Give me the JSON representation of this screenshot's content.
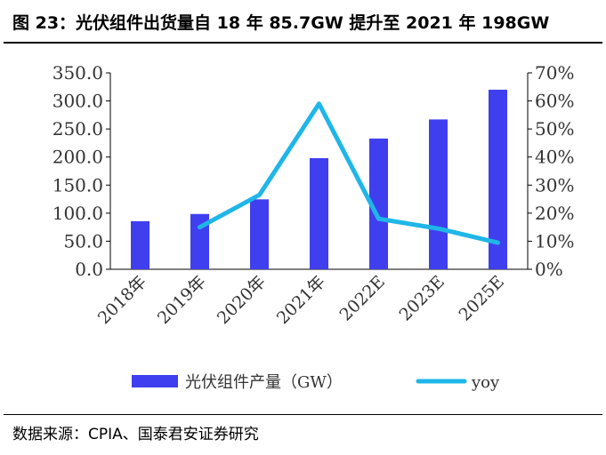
{
  "title": "图 23：光伏组件出货量自 18 年 85.7GW 提升至 2021 年 198GW",
  "source": "数据来源：CPIA、国泰君安证券研究",
  "colors": {
    "bar": "#3f3ff0",
    "line": "#1fb6e8",
    "axis": "#000000",
    "text": "#333333"
  },
  "chart_data": {
    "type": "bar",
    "categories": [
      "2018年",
      "2019年",
      "2020年",
      "2021年",
      "2022E",
      "2023E",
      "2025E"
    ],
    "series": [
      {
        "name": "光伏组件产量（GW）",
        "type": "bar",
        "axis": "left",
        "values": [
          85.7,
          98.5,
          124.6,
          198.0,
          233.0,
          267.0,
          320.0
        ]
      },
      {
        "name": "yoy",
        "type": "line",
        "axis": "right",
        "values": [
          null,
          0.15,
          0.265,
          0.59,
          0.18,
          0.145,
          0.095
        ]
      }
    ],
    "left_axis": {
      "min": 0,
      "max": 350,
      "step": 50,
      "ticks": [
        "0.0",
        "50.0",
        "100.0",
        "150.0",
        "200.0",
        "250.0",
        "300.0",
        "350.0"
      ]
    },
    "right_axis": {
      "min": 0,
      "max": 0.7,
      "step": 0.1,
      "ticks": [
        "0%",
        "10%",
        "20%",
        "30%",
        "40%",
        "50%",
        "60%",
        "70%"
      ]
    },
    "legend_position": "bottom",
    "grid": false
  }
}
